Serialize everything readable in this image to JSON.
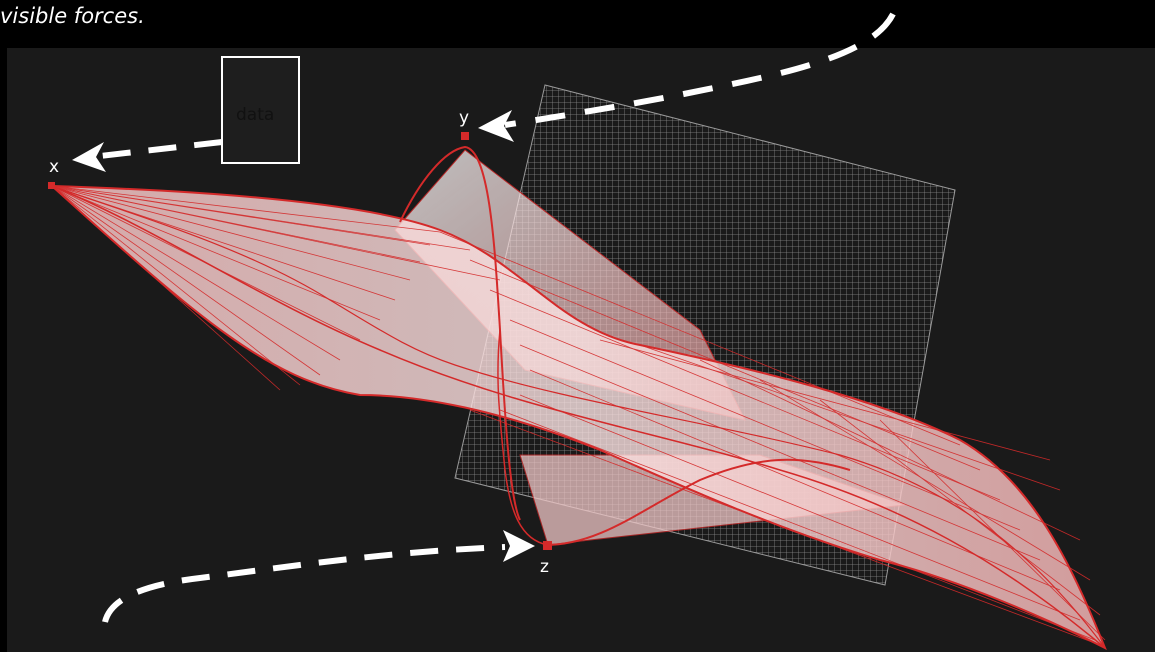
{
  "caption": "visible forces.",
  "diagram": {
    "box_label": "data",
    "axis_labels": {
      "x": "x",
      "y": "y",
      "z": "z"
    }
  },
  "colors": {
    "background": "#000000",
    "viewport": "#1a1a1a",
    "accent_red": "#d42a2a",
    "surface_fill": "#f2b8b8",
    "grid_plane": "#8a8a8a",
    "arrow": "#ffffff"
  }
}
